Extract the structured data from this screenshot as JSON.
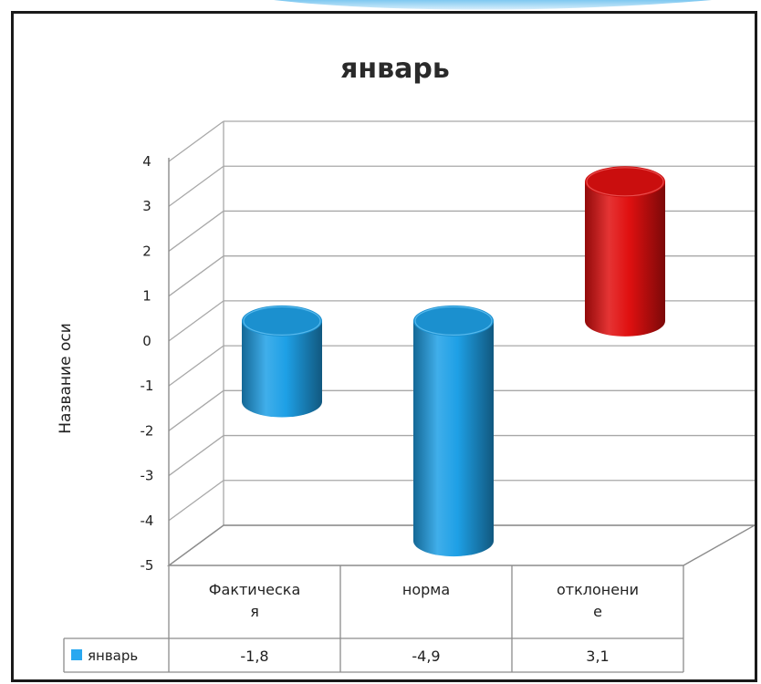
{
  "chart_data": {
    "type": "bar",
    "style": "3d-cylinder",
    "title": "январь",
    "ylabel": "Название оси",
    "xlabel": "",
    "ylim": [
      -5,
      4
    ],
    "yticks": [
      4,
      3,
      2,
      1,
      0,
      -1,
      -2,
      -3,
      -4,
      -5
    ],
    "categories": [
      "Фактическая",
      "норма",
      "отклонение"
    ],
    "category_label_lines": [
      [
        "Фактическа",
        "я"
      ],
      [
        "норма"
      ],
      [
        "отклонени",
        "е"
      ]
    ],
    "series": [
      {
        "name": "январь",
        "values": [
          -1.8,
          -4.9,
          3.1
        ],
        "value_labels": [
          "-1,8",
          "-4,9",
          "3,1"
        ],
        "colors": [
          "#1ea0e6",
          "#1ea0e6",
          "#e01010"
        ]
      }
    ],
    "legend": {
      "placement": "data-table-left",
      "entry": "январь",
      "color": "#29a8f0"
    },
    "grid": true
  }
}
